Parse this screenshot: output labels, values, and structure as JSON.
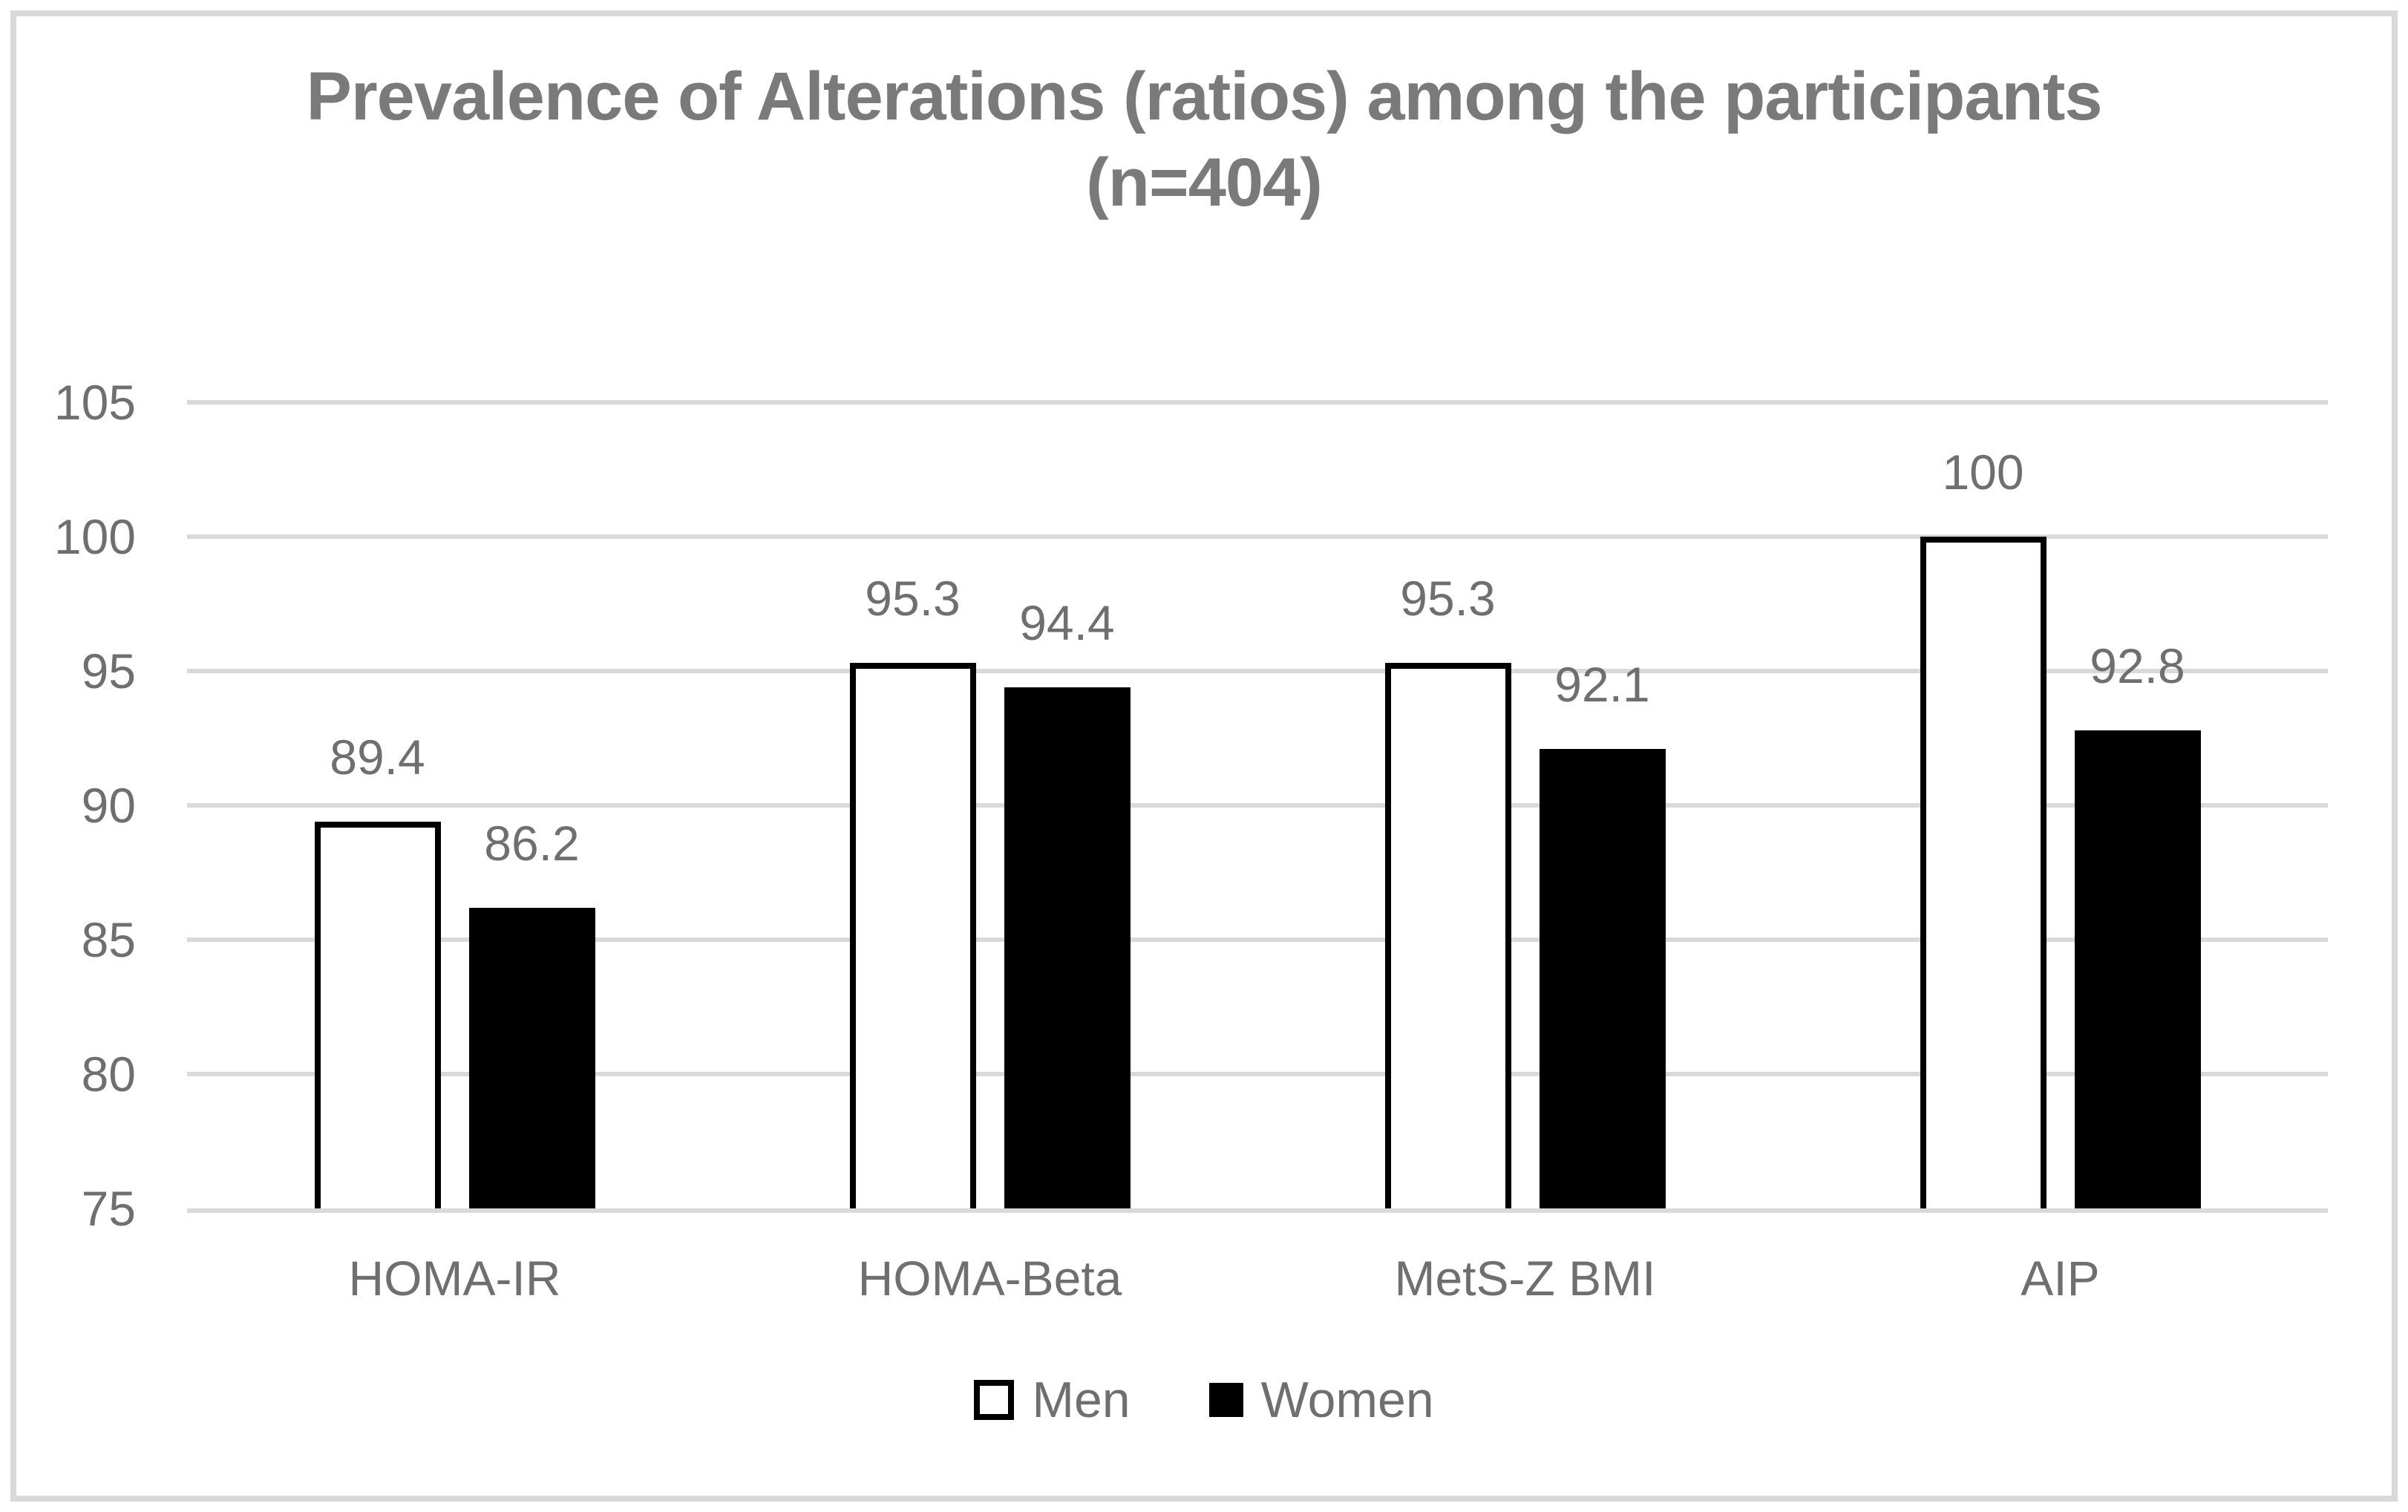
{
  "chart_data": {
    "type": "bar",
    "title": "Prevalence of Alterations (ratios) among the participants",
    "subtitle": "(n=404)",
    "categories": [
      "HOMA-IR",
      "HOMA-Beta",
      "MetS-Z BMI",
      "AIP"
    ],
    "series": [
      {
        "name": "Men",
        "fill": "#ffffff",
        "border": "#000000",
        "values": [
          89.4,
          95.3,
          95.3,
          100
        ]
      },
      {
        "name": "Women",
        "fill": "#000000",
        "border": "#000000",
        "values": [
          86.2,
          94.4,
          92.1,
          92.8
        ]
      }
    ],
    "data_labels": {
      "Men": [
        "89.4",
        "95.3",
        "95.3",
        "100"
      ],
      "Women": [
        "86.2",
        "94.4",
        "92.1",
        "92.8"
      ]
    },
    "xlabel": "",
    "ylabel": "",
    "ylim": [
      75,
      105
    ],
    "yticks": [
      75,
      80,
      85,
      90,
      95,
      100,
      105
    ],
    "grid": true,
    "legend_position": "bottom",
    "colors": {
      "title_text": "#7a7a7a",
      "axis_text": "#6f6f6f",
      "gridline": "#d9d9d9",
      "figure_border": "#d9d9d9",
      "men_bar_fill": "#ffffff",
      "men_bar_border": "#000000",
      "women_bar_fill": "#000000",
      "background": "#ffffff"
    }
  }
}
